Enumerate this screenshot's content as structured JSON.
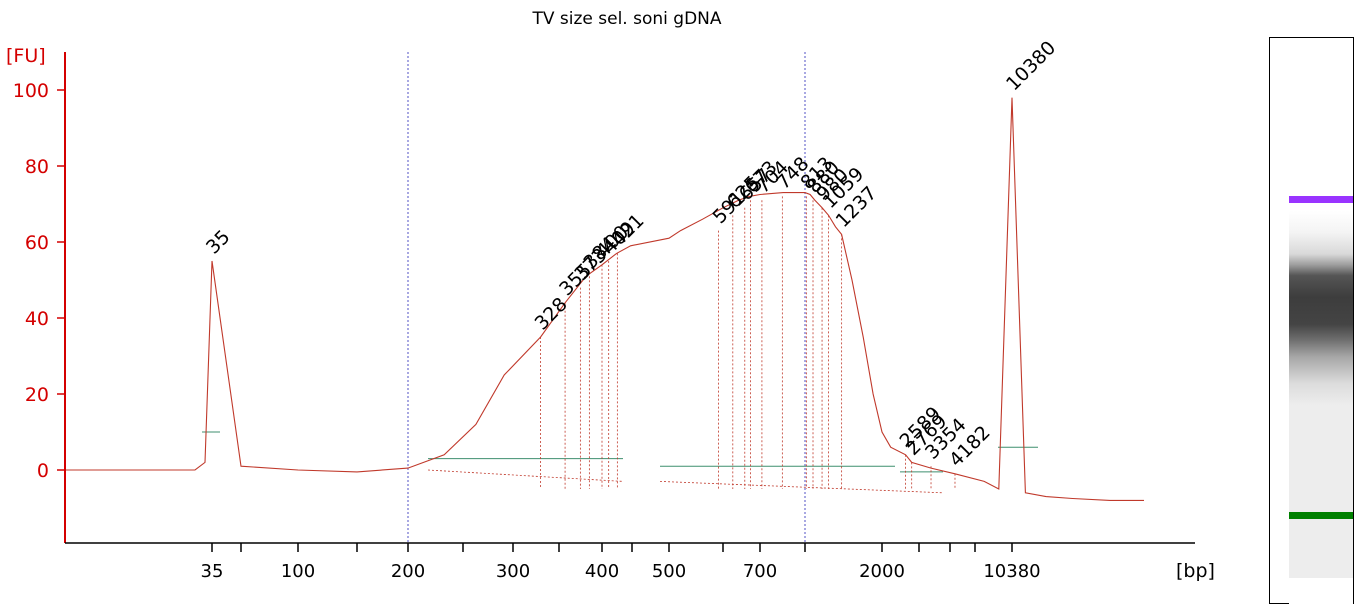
{
  "chart_data": {
    "type": "line",
    "title": "TV size sel. soni gDNA",
    "ylabel": "[FU]",
    "xlabel": "[bp]",
    "ylim": [
      -20,
      110
    ],
    "y_ticks": [
      0,
      20,
      40,
      60,
      80,
      100
    ],
    "x_tick_labels": [
      "35",
      "100",
      "200",
      "300",
      "400",
      "500",
      "700",
      "2000",
      "10380"
    ],
    "series": [
      {
        "x": [
          35,
          50,
          100,
          150,
          200,
          230,
          260,
          290,
          328,
          355,
          380,
          400,
          420,
          440,
          500,
          520,
          560,
          600,
          640,
          670,
          700,
          750,
          800,
          850,
          900,
          980,
          1059,
          1150,
          1237,
          1400,
          1600,
          1800,
          2000,
          2200,
          2589,
          2769,
          3354,
          4182,
          6000,
          8000,
          10380,
          12000,
          15000,
          20000,
          30000,
          40000
        ],
        "y": [
          55,
          1,
          0,
          -0.5,
          0.5,
          4,
          12,
          25,
          35,
          44,
          51,
          54,
          57,
          59,
          61,
          63,
          66,
          69,
          71,
          72,
          72.5,
          73,
          73,
          72.5,
          71,
          69,
          67,
          64,
          62,
          50,
          35,
          20,
          10,
          6,
          4,
          2,
          0.5,
          -1,
          -3,
          -5,
          98,
          -6,
          -7,
          -7.5,
          -8,
          -8
        ]
      }
    ],
    "peak_labels": [
      {
        "x": 35,
        "y": 55,
        "label": "35",
        "color": "#008000"
      },
      {
        "x": 328,
        "y": 35,
        "label": "328",
        "color": "#000000"
      },
      {
        "x": 355,
        "y": 44,
        "label": "355",
        "color": "#000000"
      },
      {
        "x": 373,
        "y": 48,
        "label": "373",
        "color": "#000000"
      },
      {
        "x": 384,
        "y": 51,
        "label": "384",
        "color": "#000000"
      },
      {
        "x": 400,
        "y": 54,
        "label": "400",
        "color": "#000000"
      },
      {
        "x": 409,
        "y": 55,
        "label": "409",
        "color": "#000000"
      },
      {
        "x": 421,
        "y": 57,
        "label": "421",
        "color": "#000000"
      },
      {
        "x": 591,
        "y": 63,
        "label": "591",
        "color": "#000000"
      },
      {
        "x": 625,
        "y": 67,
        "label": "625",
        "color": "#000000"
      },
      {
        "x": 657,
        "y": 69,
        "label": "657",
        "color": "#000000"
      },
      {
        "x": 704,
        "y": 71,
        "label": "704",
        "color": "#000000"
      },
      {
        "x": 673,
        "y": 71,
        "label": "673",
        "color": "#000000"
      },
      {
        "x": 748,
        "y": 72,
        "label": "748",
        "color": "#000000"
      },
      {
        "x": 813,
        "y": 72,
        "label": "813",
        "color": "#000000"
      },
      {
        "x": 880,
        "y": 71,
        "label": "880",
        "color": "#000000"
      },
      {
        "x": 980,
        "y": 69,
        "label": "980",
        "color": "#000000"
      },
      {
        "x": 1059,
        "y": 67,
        "label": "1059",
        "color": "#000000"
      },
      {
        "x": 1237,
        "y": 62,
        "label": "1237",
        "color": "#000000"
      },
      {
        "x": 2589,
        "y": 4,
        "label": "2589",
        "color": "#000000"
      },
      {
        "x": 2769,
        "y": 2,
        "label": "2769",
        "color": "#000000"
      },
      {
        "x": 3354,
        "y": 1,
        "label": "3354",
        "color": "#000000"
      },
      {
        "x": 4182,
        "y": -1,
        "label": "4182",
        "color": "#000000"
      },
      {
        "x": 10380,
        "y": 98,
        "label": "10380",
        "color": "#9933ff"
      }
    ],
    "grid": false,
    "colors": {
      "trace": "#c0392b",
      "axis": "#d40000",
      "baseline": "#3f8f6f",
      "marker_line": "#4040c0",
      "upper_marker": "#9933ff",
      "lower_marker": "#008000"
    }
  },
  "gel": {
    "upper_marker_color": "#9933ff",
    "lower_marker_color": "#008000"
  }
}
